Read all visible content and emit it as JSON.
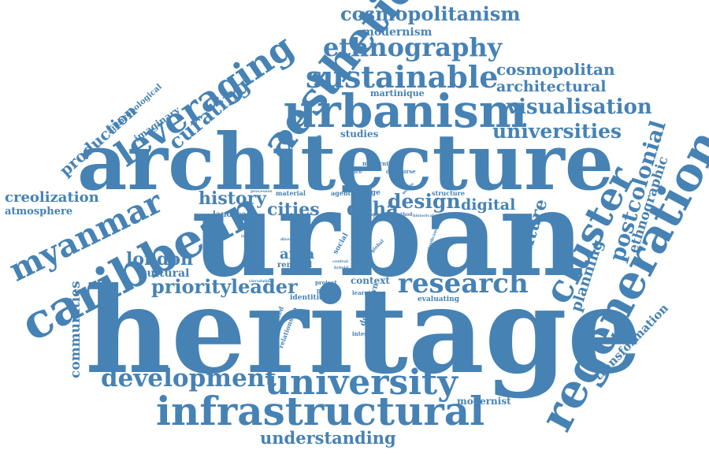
{
  "color": "#4682b4",
  "words": [
    {
      "text": "heritage",
      "weight": 1.0
    },
    {
      "text": "urban",
      "weight": 0.95
    },
    {
      "text": "architecture",
      "weight": 0.78
    },
    {
      "text": "urbanism",
      "weight": 0.5
    },
    {
      "text": "caribbean",
      "weight": 0.46
    },
    {
      "text": "regeneration",
      "weight": 0.45
    },
    {
      "text": "infrastructural",
      "weight": 0.42
    },
    {
      "text": "aesthetic",
      "weight": 0.4
    },
    {
      "text": "university",
      "weight": 0.39
    },
    {
      "text": "cluster",
      "weight": 0.38
    },
    {
      "text": "sustainable",
      "weight": 0.34
    },
    {
      "text": "leveraging",
      "weight": 0.33
    },
    {
      "text": "ethnography",
      "weight": 0.32
    },
    {
      "text": "myanmar",
      "weight": 0.3
    },
    {
      "text": "research",
      "weight": 0.29
    },
    {
      "text": "development",
      "weight": 0.28
    },
    {
      "text": "postcolonial",
      "weight": 0.26
    },
    {
      "text": "visualisation",
      "weight": 0.24
    },
    {
      "text": "universities",
      "weight": 0.24
    },
    {
      "text": "design",
      "weight": 0.24
    },
    {
      "text": "cosmopolitanism",
      "weight": 0.22
    },
    {
      "text": "priority",
      "weight": 0.22
    },
    {
      "text": "leader",
      "weight": 0.22
    },
    {
      "text": "cities",
      "weight": 0.22
    },
    {
      "text": "history",
      "weight": 0.22
    },
    {
      "text": "doha",
      "weight": 0.22
    },
    {
      "text": "london",
      "weight": 0.21
    },
    {
      "text": "culture",
      "weight": 0.2
    },
    {
      "text": "curating",
      "weight": 0.21
    },
    {
      "text": "understanding",
      "weight": 0.19
    },
    {
      "text": "production",
      "weight": 0.19
    },
    {
      "text": "planning",
      "weight": 0.18
    },
    {
      "text": "cosmopolitan",
      "weight": 0.18
    },
    {
      "text": "architectural",
      "weight": 0.17
    },
    {
      "text": "digital",
      "weight": 0.17
    },
    {
      "text": "creolization",
      "weight": 0.16
    },
    {
      "text": "communities",
      "weight": 0.16
    },
    {
      "text": "ethnographic",
      "weight": 0.16
    },
    {
      "text": "transformation",
      "weight": 0.15
    },
    {
      "text": "area",
      "weight": 0.16
    },
    {
      "text": "cultural",
      "weight": 0.14
    },
    {
      "text": "modernism",
      "weight": 0.14
    },
    {
      "text": "atmosphere",
      "weight": 0.13
    },
    {
      "text": "imaginary",
      "weight": 0.12
    },
    {
      "text": "studies",
      "weight": 0.12
    },
    {
      "text": "martinique",
      "weight": 0.11
    },
    {
      "text": "modernist",
      "weight": 0.12
    },
    {
      "text": "context",
      "weight": 0.12
    },
    {
      "text": "landscape",
      "weight": 0.1
    },
    {
      "text": "anthropological",
      "weight": 0.1
    },
    {
      "text": "downtown",
      "weight": 0.1
    },
    {
      "text": "renewal",
      "weight": 0.1
    },
    {
      "text": "city",
      "weight": 0.1
    },
    {
      "text": "social",
      "weight": 0.09
    },
    {
      "text": "identities",
      "weight": 0.09
    },
    {
      "text": "evaluating",
      "weight": 0.09
    },
    {
      "text": "unexpected",
      "weight": 0.08
    },
    {
      "text": "relationship",
      "weight": 0.08
    },
    {
      "text": "construction",
      "weight": 0.08
    },
    {
      "text": "image",
      "weight": 0.09
    },
    {
      "text": "structure",
      "weight": 0.08
    },
    {
      "text": "material",
      "weight": 0.08
    },
    {
      "text": "agency",
      "weight": 0.08
    },
    {
      "text": "project",
      "weight": 0.07
    },
    {
      "text": "present",
      "weight": 0.07
    },
    {
      "text": "integrated",
      "weight": 0.07
    },
    {
      "text": "learning",
      "weight": 0.07
    },
    {
      "text": "modernity",
      "weight": 0.07
    },
    {
      "text": "discourse",
      "weight": 0.07
    },
    {
      "text": "practice",
      "weight": 0.06
    },
    {
      "text": "method",
      "weight": 0.06
    },
    {
      "text": "historical",
      "weight": 0.05
    },
    {
      "text": "discussion",
      "weight": 0.05
    },
    {
      "text": "processes",
      "weight": 0.05
    },
    {
      "text": "circulation",
      "weight": 0.05
    },
    {
      "text": "technical",
      "weight": 0.05
    },
    {
      "text": "diverse",
      "weight": 0.05
    },
    {
      "text": "global",
      "weight": 0.06
    },
    {
      "text": "space",
      "weight": 0.06
    },
    {
      "text": "central",
      "weight": 0.05
    },
    {
      "text": "hybrid",
      "weight": 0.05
    },
    {
      "text": "place",
      "weight": 0.06
    },
    {
      "text": "mobile",
      "weight": 0.05
    },
    {
      "text": "significance",
      "weight": 0.05
    }
  ]
}
